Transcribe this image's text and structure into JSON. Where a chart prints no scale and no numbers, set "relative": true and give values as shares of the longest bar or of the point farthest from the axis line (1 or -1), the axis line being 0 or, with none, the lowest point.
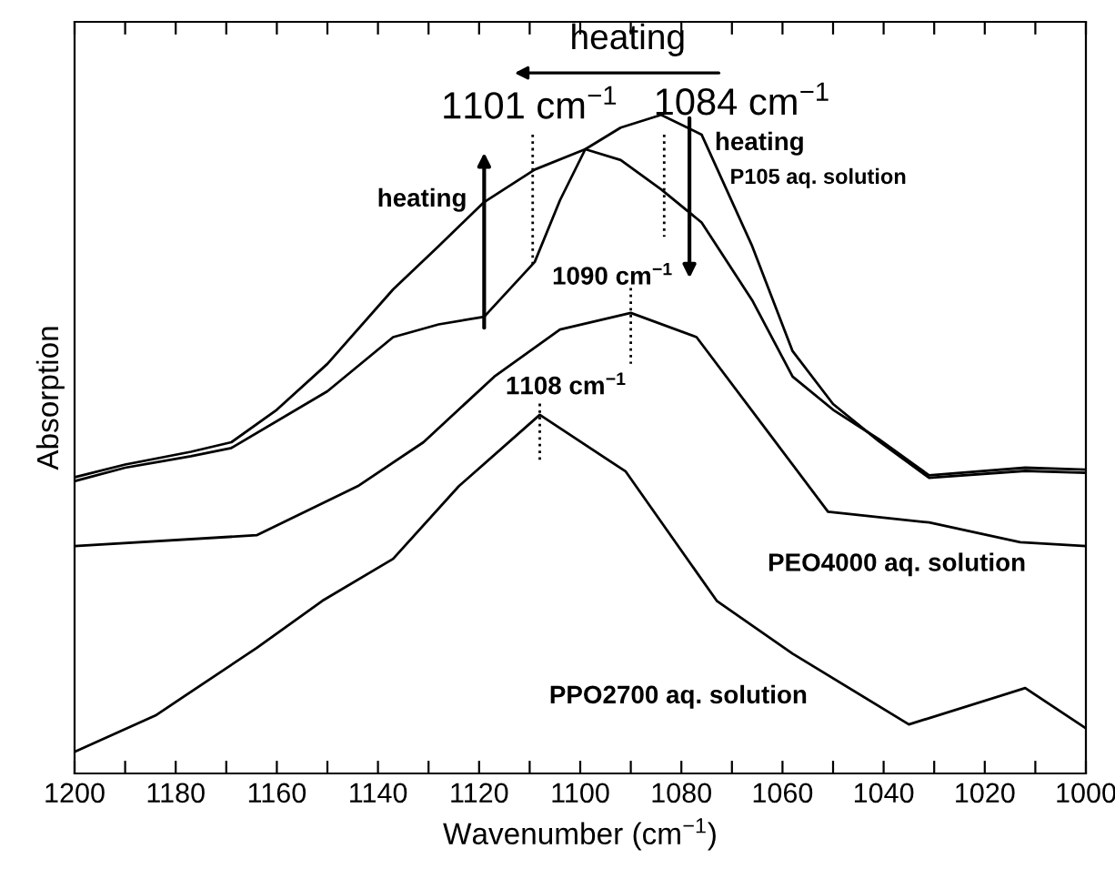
{
  "chart_data": {
    "type": "line",
    "relative": true,
    "xlabel": "Wavenumber (cm$^{−1}$)",
    "ylabel": "Absorption",
    "tick_labels": "x",
    "grid": false,
    "marker": "none",
    "line_style": "solid",
    "xlim": [
      1200,
      1000
    ],
    "xticks": [
      1200,
      {
        "value": 1190,
        "label": null
      },
      1180,
      {
        "value": 1170,
        "label": null
      },
      1160,
      {
        "value": 1150,
        "label": null
      },
      1140,
      {
        "value": 1130,
        "label": null
      },
      1120,
      {
        "value": 1110,
        "label": null
      },
      1100,
      {
        "value": 1090,
        "label": null
      },
      1080,
      {
        "value": 1070,
        "label": null
      },
      1060,
      {
        "value": 1050,
        "label": null
      },
      1040,
      {
        "value": 1030,
        "label": null
      },
      1020,
      {
        "value": 1010,
        "label": null
      },
      1000
    ],
    "series": [
      {
        "color": "#000000",
        "x": [
          1200,
          1190,
          1177,
          1169,
          1160,
          1150,
          1137,
          1128,
          1119,
          1109,
          1099,
          1092,
          1084,
          1076,
          1066,
          1058,
          1050,
          1041,
          1031,
          1012,
          1000
        ],
        "values": [
          0.431,
          0.451,
          0.471,
          0.486,
          0.537,
          0.609,
          0.726,
          0.794,
          0.863,
          0.914,
          0.946,
          0.929,
          0.883,
          0.831,
          0.709,
          0.589,
          0.537,
          0.491,
          0.434,
          0.446,
          0.443
        ]
      },
      {
        "color": "#000000",
        "x": [
          1200,
          1190,
          1177,
          1169,
          1150,
          1137,
          1128,
          1119,
          1109,
          1104,
          1099,
          1092,
          1084,
          1076,
          1066,
          1058,
          1050,
          1041,
          1031,
          1012,
          1000
        ],
        "values": [
          0.425,
          0.446,
          0.464,
          0.477,
          0.566,
          0.651,
          0.671,
          0.683,
          0.769,
          0.866,
          0.946,
          0.98,
          1.0,
          0.969,
          0.794,
          0.629,
          0.546,
          0.488,
          0.43,
          0.441,
          0.438
        ]
      },
      {
        "color": "#000000",
        "x": [
          1200,
          1164,
          1144,
          1131,
          1117,
          1104,
          1090,
          1077,
          1064,
          1051,
          1031,
          1013,
          1000
        ],
        "values": [
          0.323,
          0.34,
          0.417,
          0.486,
          0.589,
          0.663,
          0.689,
          0.651,
          0.514,
          0.377,
          0.36,
          0.329,
          0.323
        ]
      },
      {
        "color": "#000000",
        "x": [
          1200,
          1184,
          1164,
          1151,
          1137,
          1124,
          1108,
          1091,
          1073,
          1058,
          1035,
          1012,
          1000
        ],
        "values": [
          0.0,
          0.057,
          0.163,
          0.237,
          0.303,
          0.417,
          0.529,
          0.44,
          0.237,
          0.154,
          0.043,
          0.1,
          0.037
        ]
      }
    ],
    "annotations": [
      "heating",
      "1101 cm$^{−1}$",
      "1084 cm$^{−1}$",
      "heating",
      "P105 aq. solution",
      "heating",
      "1090 cm$^{−1}$",
      "1108 cm$^{−1}$",
      "PEO4000 aq. solution",
      "PPO2700 aq. solution"
    ]
  }
}
